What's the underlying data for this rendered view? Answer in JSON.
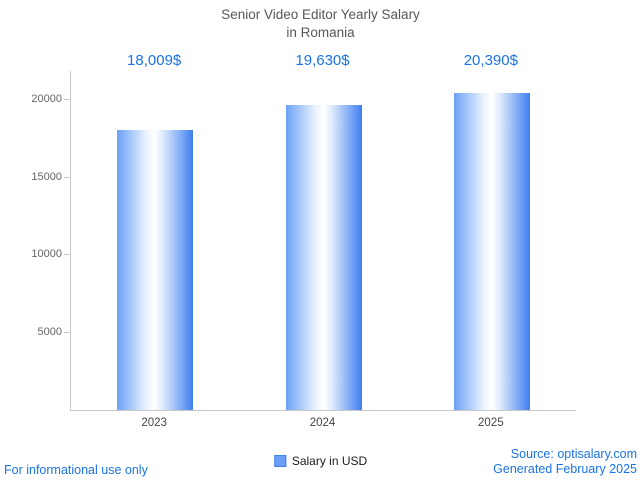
{
  "title": {
    "line1": "Senior Video Editor Yearly Salary",
    "line2": "in Romania"
  },
  "chart_data": {
    "type": "bar",
    "title": "Senior Video Editor Yearly Salary in Romania",
    "categories": [
      "2023",
      "2024",
      "2025"
    ],
    "values": [
      18009,
      19630,
      20390
    ],
    "value_labels": [
      "18,009$",
      "19,630$",
      "20,390$"
    ],
    "xlabel": "",
    "ylabel": "",
    "ylim": [
      0,
      21800
    ],
    "yticks": [
      5000,
      10000,
      15000,
      20000
    ],
    "grid": false,
    "legend": [
      "Salary in USD"
    ],
    "legend_position": "bottom",
    "bar_gradient": [
      "#6ba1f7",
      "#ffffff",
      "#3f7ef0"
    ]
  },
  "legend": {
    "label": "Salary in USD",
    "swatch_color": "#6b9ff7"
  },
  "footer": {
    "left": "For informational use only",
    "source": "Source: optisalary.com",
    "generated": "Generated February 2025"
  },
  "colors": {
    "accent_blue": "#1a73e8",
    "title_gray": "#575757",
    "axis_gray": "#c8c8c8",
    "tick_text_gray": "#666666"
  }
}
